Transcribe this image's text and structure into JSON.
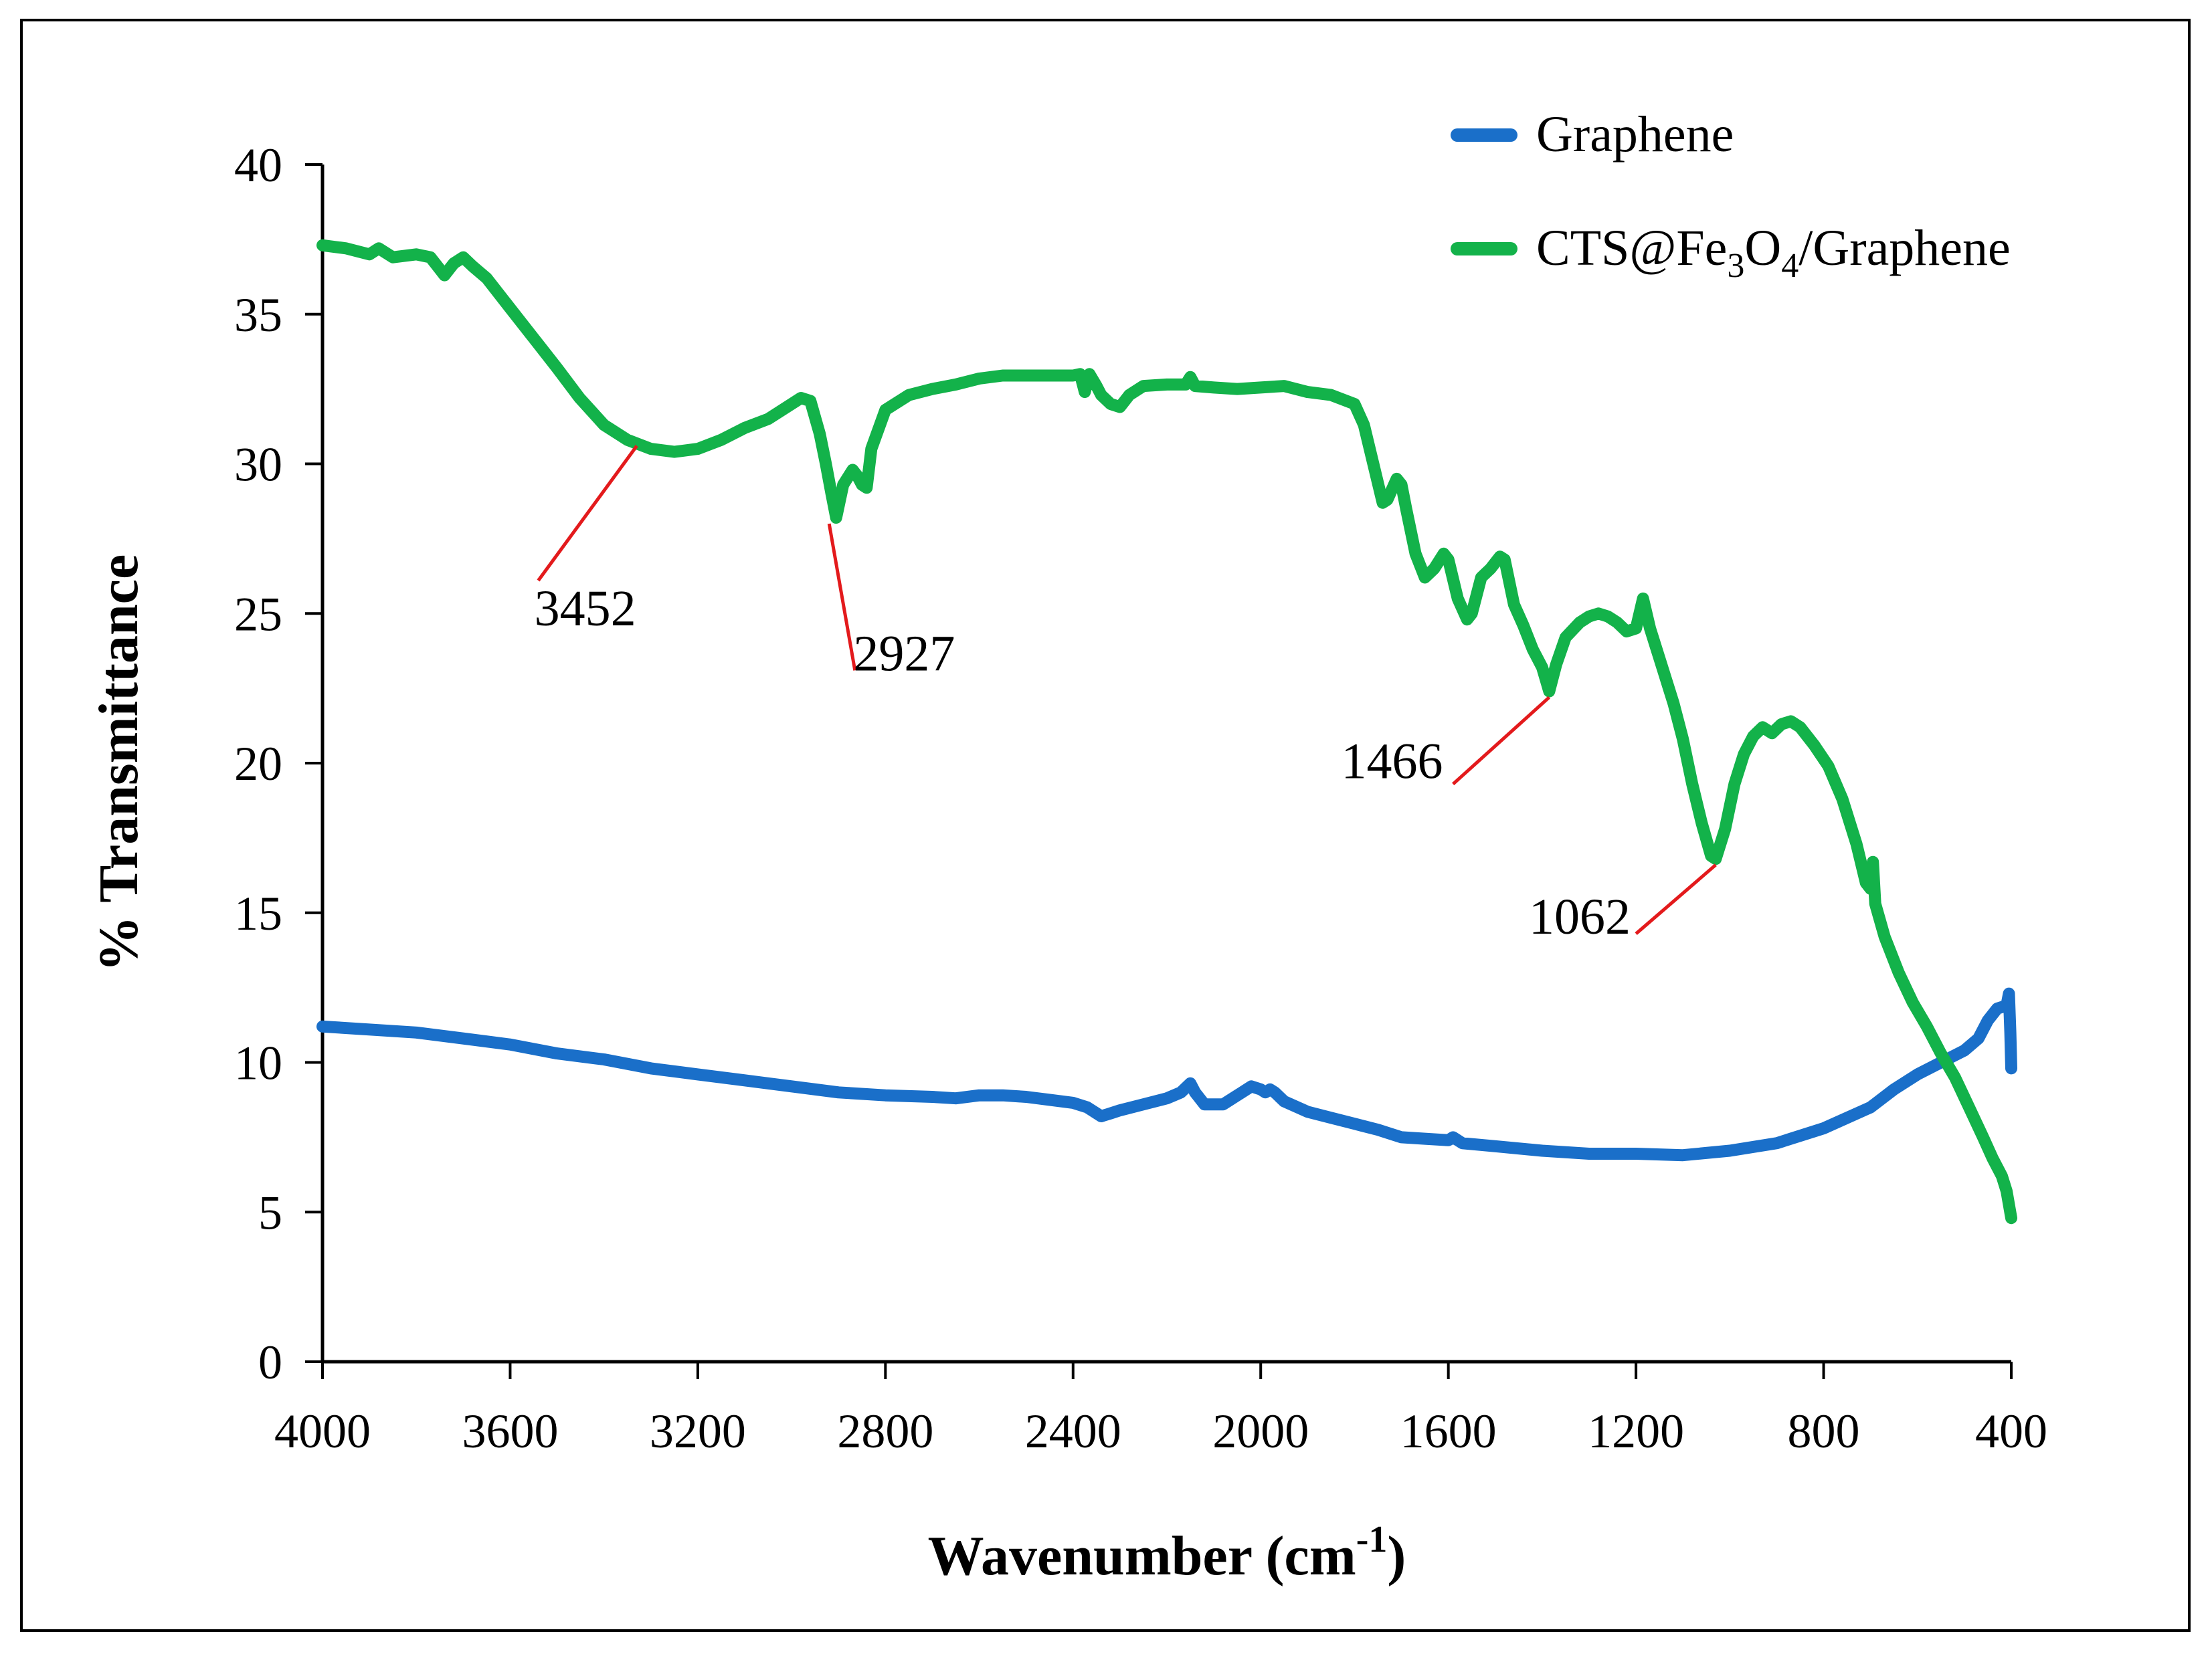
{
  "chart_data": {
    "type": "line",
    "title": "",
    "xlabel": "Wavenumber (cm⁻¹)",
    "xlabel_main": "Wavenumber (cm",
    "xlabel_sup": "-1",
    "xlabel_close": ")",
    "ylabel": "% Transmittance",
    "xlim": [
      4000,
      400
    ],
    "ylim": [
      0,
      40
    ],
    "x_ticks": [
      "4000",
      "3600",
      "3200",
      "2800",
      "2400",
      "2000",
      "1600",
      "1200",
      "800",
      "400"
    ],
    "y_ticks": [
      "0",
      "5",
      "10",
      "15",
      "20",
      "25",
      "30",
      "35",
      "40"
    ],
    "grid": false,
    "legend_position": "top-right",
    "legend": [
      {
        "name": "Graphene",
        "parts": [
          {
            "t": "Graphene"
          }
        ]
      },
      {
        "name": "CTS@Fe3O4/Graphene",
        "parts": [
          {
            "t": "CTS@Fe"
          },
          {
            "t": "3",
            "sub": true
          },
          {
            "t": "O"
          },
          {
            "t": "4",
            "sub": true
          },
          {
            "t": "/Graphene"
          }
        ]
      }
    ],
    "series": [
      {
        "name": "Graphene",
        "color": "#1a6fc9",
        "points": [
          [
            4000,
            11.2
          ],
          [
            3900,
            11.1
          ],
          [
            3800,
            11.0
          ],
          [
            3700,
            10.8
          ],
          [
            3650,
            10.7
          ],
          [
            3600,
            10.6
          ],
          [
            3500,
            10.3
          ],
          [
            3400,
            10.1
          ],
          [
            3300,
            9.8
          ],
          [
            3200,
            9.6
          ],
          [
            3100,
            9.4
          ],
          [
            3000,
            9.2
          ],
          [
            2900,
            9.0
          ],
          [
            2800,
            8.9
          ],
          [
            2700,
            8.85
          ],
          [
            2650,
            8.8
          ],
          [
            2600,
            8.9
          ],
          [
            2550,
            8.9
          ],
          [
            2500,
            8.85
          ],
          [
            2450,
            8.75
          ],
          [
            2400,
            8.65
          ],
          [
            2370,
            8.5
          ],
          [
            2340,
            8.2
          ],
          [
            2320,
            8.3
          ],
          [
            2300,
            8.4
          ],
          [
            2250,
            8.6
          ],
          [
            2200,
            8.8
          ],
          [
            2170,
            9.0
          ],
          [
            2150,
            9.3
          ],
          [
            2140,
            9.0
          ],
          [
            2120,
            8.6
          ],
          [
            2100,
            8.6
          ],
          [
            2080,
            8.6
          ],
          [
            2060,
            8.8
          ],
          [
            2040,
            9.0
          ],
          [
            2020,
            9.2
          ],
          [
            2000,
            9.1
          ],
          [
            1990,
            9.0
          ],
          [
            1980,
            9.1
          ],
          [
            1970,
            9.0
          ],
          [
            1950,
            8.7
          ],
          [
            1900,
            8.35
          ],
          [
            1850,
            8.15
          ],
          [
            1800,
            7.95
          ],
          [
            1750,
            7.75
          ],
          [
            1720,
            7.6
          ],
          [
            1700,
            7.5
          ],
          [
            1650,
            7.45
          ],
          [
            1600,
            7.4
          ],
          [
            1590,
            7.5
          ],
          [
            1570,
            7.3
          ],
          [
            1500,
            7.2
          ],
          [
            1400,
            7.05
          ],
          [
            1300,
            6.95
          ],
          [
            1200,
            6.95
          ],
          [
            1100,
            6.9
          ],
          [
            1000,
            7.05
          ],
          [
            900,
            7.3
          ],
          [
            800,
            7.8
          ],
          [
            700,
            8.5
          ],
          [
            650,
            9.1
          ],
          [
            600,
            9.6
          ],
          [
            550,
            10.0
          ],
          [
            500,
            10.4
          ],
          [
            470,
            10.8
          ],
          [
            450,
            11.4
          ],
          [
            430,
            11.8
          ],
          [
            410,
            11.9
          ],
          [
            405,
            12.3
          ],
          [
            402,
            11.0
          ],
          [
            400,
            9.8
          ]
        ]
      },
      {
        "name": "CTS@Fe3O4/Graphene",
        "color": "#13b24a",
        "points": [
          [
            4000,
            37.3
          ],
          [
            3950,
            37.2
          ],
          [
            3900,
            37.0
          ],
          [
            3880,
            37.2
          ],
          [
            3850,
            36.9
          ],
          [
            3800,
            37.0
          ],
          [
            3770,
            36.9
          ],
          [
            3750,
            36.5
          ],
          [
            3740,
            36.3
          ],
          [
            3720,
            36.7
          ],
          [
            3700,
            36.9
          ],
          [
            3680,
            36.6
          ],
          [
            3650,
            36.2
          ],
          [
            3600,
            35.2
          ],
          [
            3550,
            34.2
          ],
          [
            3500,
            33.2
          ],
          [
            3452,
            32.2
          ],
          [
            3400,
            31.3
          ],
          [
            3350,
            30.8
          ],
          [
            3300,
            30.5
          ],
          [
            3250,
            30.4
          ],
          [
            3200,
            30.5
          ],
          [
            3150,
            30.8
          ],
          [
            3100,
            31.2
          ],
          [
            3050,
            31.5
          ],
          [
            3000,
            32.0
          ],
          [
            2980,
            32.2
          ],
          [
            2960,
            32.1
          ],
          [
            2940,
            31.0
          ],
          [
            2927,
            30.0
          ],
          [
            2915,
            29.0
          ],
          [
            2905,
            28.2
          ],
          [
            2890,
            29.3
          ],
          [
            2870,
            29.8
          ],
          [
            2860,
            29.6
          ],
          [
            2850,
            29.3
          ],
          [
            2840,
            29.2
          ],
          [
            2830,
            30.5
          ],
          [
            2800,
            31.8
          ],
          [
            2750,
            32.3
          ],
          [
            2700,
            32.5
          ],
          [
            2650,
            32.65
          ],
          [
            2600,
            32.85
          ],
          [
            2550,
            32.95
          ],
          [
            2500,
            32.95
          ],
          [
            2450,
            32.95
          ],
          [
            2400,
            32.95
          ],
          [
            2385,
            33.0
          ],
          [
            2375,
            32.4
          ],
          [
            2365,
            33.0
          ],
          [
            2350,
            32.6
          ],
          [
            2340,
            32.3
          ],
          [
            2320,
            32.0
          ],
          [
            2300,
            31.9
          ],
          [
            2280,
            32.3
          ],
          [
            2250,
            32.6
          ],
          [
            2200,
            32.65
          ],
          [
            2160,
            32.65
          ],
          [
            2150,
            32.9
          ],
          [
            2140,
            32.6
          ],
          [
            2100,
            32.55
          ],
          [
            2050,
            32.5
          ],
          [
            2000,
            32.55
          ],
          [
            1950,
            32.6
          ],
          [
            1900,
            32.4
          ],
          [
            1850,
            32.3
          ],
          [
            1800,
            32.0
          ],
          [
            1780,
            31.3
          ],
          [
            1760,
            30.0
          ],
          [
            1740,
            28.7
          ],
          [
            1730,
            28.8
          ],
          [
            1710,
            29.5
          ],
          [
            1700,
            29.3
          ],
          [
            1690,
            28.5
          ],
          [
            1670,
            27.0
          ],
          [
            1650,
            26.2
          ],
          [
            1630,
            26.5
          ],
          [
            1610,
            27.0
          ],
          [
            1600,
            26.8
          ],
          [
            1580,
            25.5
          ],
          [
            1560,
            24.8
          ],
          [
            1550,
            25.0
          ],
          [
            1530,
            26.2
          ],
          [
            1510,
            26.5
          ],
          [
            1490,
            26.9
          ],
          [
            1480,
            26.8
          ],
          [
            1460,
            25.3
          ],
          [
            1440,
            24.6
          ],
          [
            1420,
            23.8
          ],
          [
            1400,
            23.2
          ],
          [
            1385,
            22.4
          ],
          [
            1370,
            23.3
          ],
          [
            1350,
            24.2
          ],
          [
            1320,
            24.7
          ],
          [
            1300,
            24.9
          ],
          [
            1280,
            25.0
          ],
          [
            1260,
            24.9
          ],
          [
            1240,
            24.7
          ],
          [
            1220,
            24.4
          ],
          [
            1200,
            24.5
          ],
          [
            1185,
            25.5
          ],
          [
            1170,
            24.5
          ],
          [
            1150,
            23.5
          ],
          [
            1120,
            22.0
          ],
          [
            1100,
            20.8
          ],
          [
            1080,
            19.3
          ],
          [
            1060,
            18.0
          ],
          [
            1040,
            16.9
          ],
          [
            1030,
            16.8
          ],
          [
            1010,
            17.8
          ],
          [
            990,
            19.3
          ],
          [
            970,
            20.3
          ],
          [
            950,
            20.9
          ],
          [
            930,
            21.2
          ],
          [
            910,
            21.0
          ],
          [
            890,
            21.3
          ],
          [
            870,
            21.4
          ],
          [
            850,
            21.2
          ],
          [
            820,
            20.6
          ],
          [
            790,
            19.9
          ],
          [
            760,
            18.8
          ],
          [
            730,
            17.3
          ],
          [
            710,
            16.0
          ],
          [
            700,
            15.8
          ],
          [
            695,
            16.7
          ],
          [
            690,
            15.3
          ],
          [
            670,
            14.2
          ],
          [
            640,
            13.0
          ],
          [
            610,
            12.0
          ],
          [
            580,
            11.2
          ],
          [
            550,
            10.3
          ],
          [
            520,
            9.5
          ],
          [
            490,
            8.5
          ],
          [
            460,
            7.5
          ],
          [
            440,
            6.8
          ],
          [
            420,
            6.2
          ],
          [
            410,
            5.7
          ],
          [
            400,
            4.8
          ]
        ]
      }
    ],
    "annotations": [
      {
        "label": "3452",
        "line_from": [
          3330,
          30.6
        ],
        "line_to": [
          3540,
          26.1
        ],
        "text_at": [
          3440,
          24.6
        ]
      },
      {
        "label": "2927",
        "line_from": [
          2920,
          28.0
        ],
        "line_to": [
          2865,
          23.1
        ],
        "text_at": [
          2760,
          23.1
        ]
      },
      {
        "label": "1466",
        "line_from": [
          1385,
          22.2
        ],
        "line_to": [
          1590,
          19.3
        ],
        "text_at": [
          1720,
          19.5
        ]
      },
      {
        "label": "1062",
        "line_from": [
          1030,
          16.6
        ],
        "line_to": [
          1200,
          14.3
        ],
        "text_at": [
          1320,
          14.3
        ]
      }
    ],
    "annotation_color": "#e31a1c"
  }
}
